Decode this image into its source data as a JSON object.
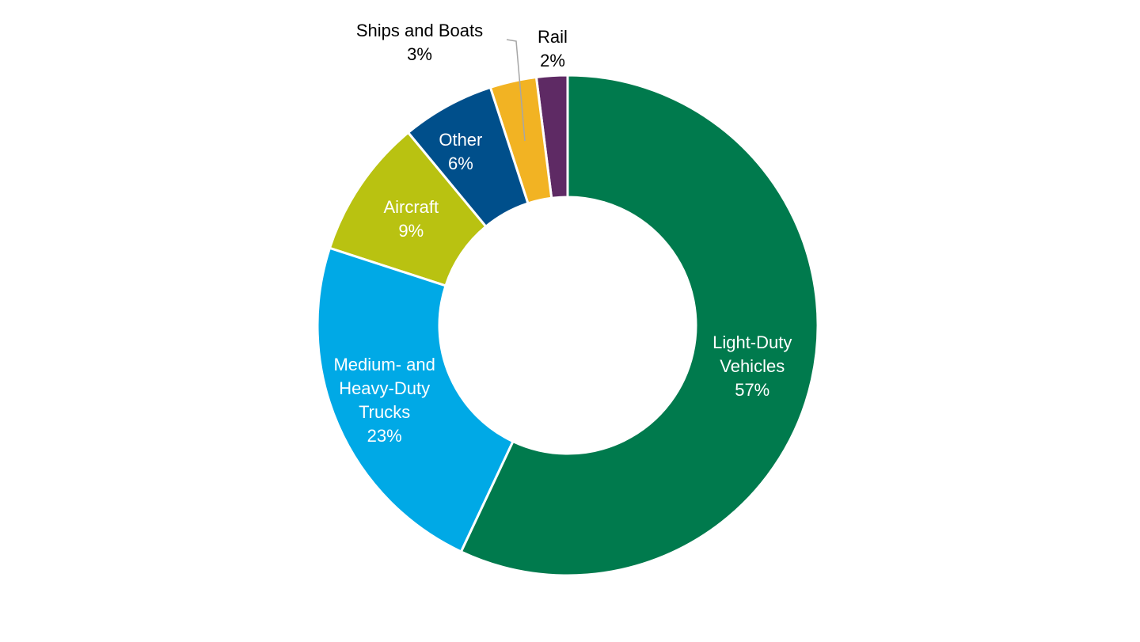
{
  "chart_data": {
    "type": "donut",
    "categories": [
      "Light-Duty Vehicles",
      "Medium- and Heavy-Duty Trucks",
      "Aircraft",
      "Other",
      "Ships and Boats",
      "Rail"
    ],
    "values": [
      57,
      23,
      9,
      6,
      3,
      2
    ],
    "value_labels": [
      "57%",
      "23%",
      "9%",
      "6%",
      "3%",
      "2%"
    ],
    "colors": [
      "#007a4d",
      "#00a9e6",
      "#b9c211",
      "#004f8b",
      "#f2b323",
      "#5e2a64"
    ]
  }
}
